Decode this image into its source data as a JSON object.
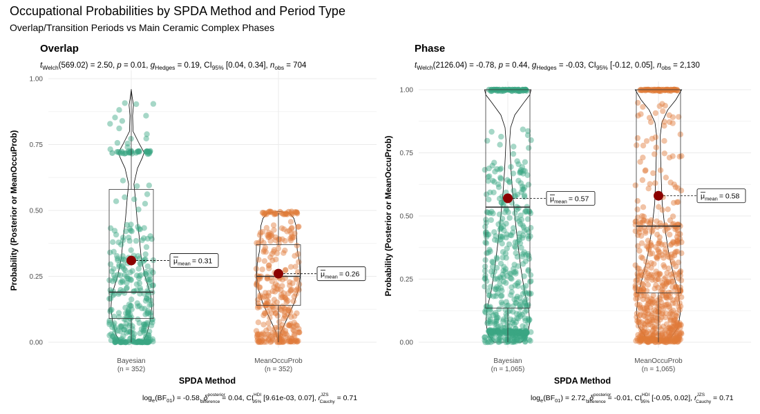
{
  "title": "Occupational Probabilities by SPDA Method and Period Type",
  "subtitle": "Overlap/Transition Periods vs Main Ceramic Complex Phases",
  "chart_data": [
    {
      "type": "violin-box-jitter",
      "panel_title": "Overlap",
      "stats": {
        "t_sym": "t",
        "t_sub": "Welch",
        "df": "(569.02)",
        "t_value": " = 2.50, ",
        "p_sym": "p",
        "p_value": " = 0.01, ",
        "g_sym": "g",
        "g_sub": "Hedges",
        "g_value": " = 0.19, CI",
        "ci_sub": "95%",
        "ci_value": " [0.04, 0.34], ",
        "n_sym": "n",
        "n_sub": "obs",
        "n_value": " = 704"
      },
      "bayes": {
        "log": "log",
        "log_sub": "e",
        "bf": "(BF",
        "bf_sub": "01",
        "bf_value": ") = -0.58, ",
        "delta_sym": "δ",
        "delta_sup": "posterior",
        "delta_sub": "difference",
        "delta_value": " = 0.04, CI",
        "ci_sup": "HDI",
        "ci_sub": "95%",
        "ci_value": " [9.61e-03, 0.07], ",
        "r_sym": "r",
        "r_sup": "JZS",
        "r_sub": "Cauchy",
        "r_value": " = 0.71"
      },
      "xlabel": "SPDA Method",
      "ylabel": "Probability (Posterior or MeanOccuProb)",
      "ylim": [
        0,
        1.0
      ],
      "yticks": [
        "0.00",
        "0.25",
        "0.50",
        "0.75",
        "1.00"
      ],
      "categories": [
        "Bayesian",
        "MeanOccuProb"
      ],
      "category_n": [
        "(n = 352)",
        "(n = 352)"
      ],
      "colors": [
        "#3aa683",
        "#e07b39"
      ],
      "series": [
        {
          "name": "Bayesian",
          "box": {
            "min": 0.0,
            "q1": 0.09,
            "median": 0.19,
            "q3": 0.58,
            "max": 0.96
          },
          "mean": 0.31,
          "mean_label_sym": "μ",
          "mean_label_sub": "mean",
          "mean_label_value": "= 0.31",
          "violin": [
            [
              0.0,
              0.5
            ],
            [
              0.03,
              0.7
            ],
            [
              0.08,
              0.85
            ],
            [
              0.13,
              0.92
            ],
            [
              0.18,
              0.88
            ],
            [
              0.25,
              0.62
            ],
            [
              0.32,
              0.45
            ],
            [
              0.4,
              0.36
            ],
            [
              0.47,
              0.26
            ],
            [
              0.55,
              0.18
            ],
            [
              0.6,
              0.12
            ],
            [
              0.66,
              0.28
            ],
            [
              0.7,
              0.5
            ],
            [
              0.72,
              0.58
            ],
            [
              0.75,
              0.38
            ],
            [
              0.8,
              0.08
            ],
            [
              0.86,
              0.06
            ],
            [
              0.9,
              0.1
            ],
            [
              0.93,
              0.04
            ],
            [
              0.96,
              0.0
            ]
          ],
          "clusters": [
            [
              0.72,
              30
            ],
            [
              0.0,
              35
            ]
          ],
          "band": [
            0.0,
            0.45,
            260
          ],
          "extra": [
            0.45,
            0.96,
            25
          ]
        },
        {
          "name": "MeanOccuProb",
          "box": {
            "min": 0.0,
            "q1": 0.14,
            "median": 0.25,
            "q3": 0.37,
            "max": 0.49
          },
          "mean": 0.26,
          "mean_label_sym": "μ",
          "mean_label_sub": "mean",
          "mean_label_value": "= 0.26",
          "violin": [
            [
              0.0,
              0.02
            ],
            [
              0.04,
              0.12
            ],
            [
              0.1,
              0.45
            ],
            [
              0.15,
              0.72
            ],
            [
              0.2,
              0.9
            ],
            [
              0.25,
              0.98
            ],
            [
              0.3,
              0.96
            ],
            [
              0.35,
              0.85
            ],
            [
              0.4,
              0.82
            ],
            [
              0.44,
              0.8
            ],
            [
              0.47,
              0.7
            ],
            [
              0.49,
              0.5
            ],
            [
              0.497,
              0.0
            ]
          ],
          "clusters": [
            [
              0.49,
              28
            ]
          ],
          "band": [
            0.0,
            0.46,
            290
          ],
          "extra": [
            0.0,
            0.0,
            0
          ]
        }
      ]
    },
    {
      "type": "violin-box-jitter",
      "panel_title": "Phase",
      "stats": {
        "t_sym": "t",
        "t_sub": "Welch",
        "df": "(2126.04)",
        "t_value": " = -0.78, ",
        "p_sym": "p",
        "p_value": " = 0.44, ",
        "g_sym": "g",
        "g_sub": "Hedges",
        "g_value": " = -0.03, CI",
        "ci_sub": "95%",
        "ci_value": " [-0.12, 0.05], ",
        "n_sym": "n",
        "n_sub": "obs",
        "n_value": " = 2,130"
      },
      "bayes": {
        "log": "log",
        "log_sub": "e",
        "bf": "(BF",
        "bf_sub": "01",
        "bf_value": ") = 2.72, ",
        "delta_sym": "δ",
        "delta_sup": "posterior",
        "delta_sub": "difference",
        "delta_value": " = -0.01, CI",
        "ci_sup": "HDI",
        "ci_sub": "95%",
        "ci_value": " [-0.05, 0.02], ",
        "r_sym": "r",
        "r_sup": "JZS",
        "r_sub": "Cauchy",
        "r_value": " = 0.71"
      },
      "xlabel": "SPDA Method",
      "ylabel": "Probability (Posterior or MeanOccuProb)",
      "ylim": [
        0,
        1.0
      ],
      "yticks": [
        "0.00",
        "0.25",
        "0.50",
        "0.75",
        "1.00"
      ],
      "categories": [
        "Bayesian",
        "MeanOccuProb"
      ],
      "category_n": [
        "(n = 1,065)",
        "(n = 1,065)"
      ],
      "colors": [
        "#3aa683",
        "#e07b39"
      ],
      "series": [
        {
          "name": "Bayesian",
          "box": {
            "min": 0.0,
            "q1": 0.135,
            "median": 0.535,
            "q3": 1.0,
            "max": 1.0
          },
          "mean": 0.57,
          "mean_label_sym": "μ",
          "mean_label_sub": "mean",
          "mean_label_value": "= 0.57",
          "violin": [
            [
              0.0,
              0.6
            ],
            [
              0.03,
              0.85
            ],
            [
              0.08,
              0.95
            ],
            [
              0.13,
              0.9
            ],
            [
              0.2,
              0.72
            ],
            [
              0.3,
              0.55
            ],
            [
              0.4,
              0.42
            ],
            [
              0.5,
              0.3
            ],
            [
              0.6,
              0.2
            ],
            [
              0.68,
              0.14
            ],
            [
              0.75,
              0.1
            ],
            [
              0.8,
              0.08
            ],
            [
              0.85,
              0.12
            ],
            [
              0.9,
              0.3
            ],
            [
              0.95,
              0.7
            ],
            [
              0.98,
              0.95
            ],
            [
              1.0,
              1.0
            ]
          ],
          "clusters": [
            [
              1.0,
              60
            ],
            [
              0.04,
              80
            ]
          ],
          "band": [
            0.0,
            0.7,
            420
          ],
          "extra": [
            0.7,
            0.85,
            15
          ]
        },
        {
          "name": "MeanOccuProb",
          "box": {
            "min": 0.0,
            "q1": 0.195,
            "median": 0.46,
            "q3": 1.0,
            "max": 1.0
          },
          "mean": 0.58,
          "mean_label_sym": "μ",
          "mean_label_sub": "mean",
          "mean_label_value": "= 0.58",
          "violin": [
            [
              0.0,
              0.2
            ],
            [
              0.02,
              0.55
            ],
            [
              0.06,
              0.85
            ],
            [
              0.12,
              0.95
            ],
            [
              0.2,
              0.85
            ],
            [
              0.28,
              0.62
            ],
            [
              0.35,
              0.45
            ],
            [
              0.45,
              0.28
            ],
            [
              0.55,
              0.16
            ],
            [
              0.65,
              0.12
            ],
            [
              0.75,
              0.09
            ],
            [
              0.82,
              0.08
            ],
            [
              0.87,
              0.15
            ],
            [
              0.92,
              0.4
            ],
            [
              0.96,
              0.75
            ],
            [
              1.0,
              1.0
            ]
          ],
          "clusters": [
            [
              1.0,
              55
            ],
            [
              0.01,
              40
            ]
          ],
          "band": [
            0.0,
            0.5,
            480
          ],
          "extra": [
            0.5,
            0.95,
            60
          ]
        }
      ]
    }
  ]
}
